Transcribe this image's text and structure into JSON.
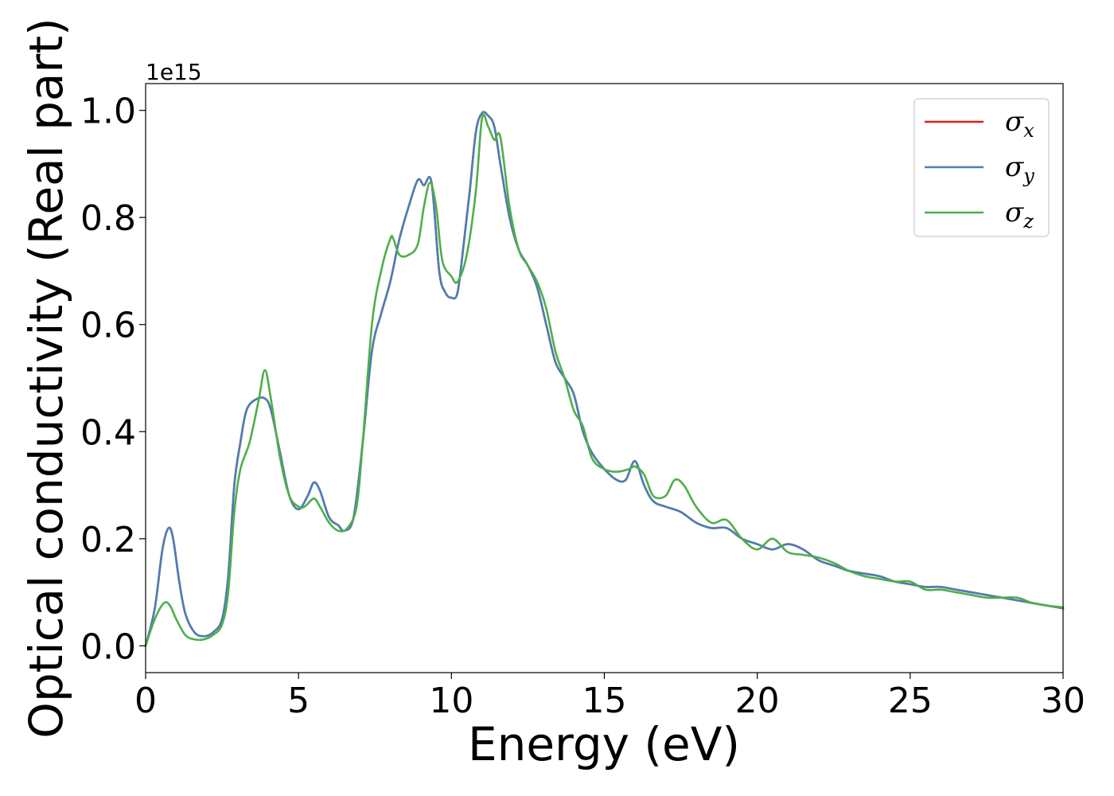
{
  "chart_data": {
    "type": "line",
    "xlabel": "Energy (eV)",
    "ylabel": "Optical conductivity (Real part)",
    "y_offset_text": "1e15",
    "xlim": [
      0,
      30
    ],
    "ylim": [
      -0.05,
      1.05
    ],
    "xticks": [
      0,
      5,
      10,
      15,
      20,
      25,
      30
    ],
    "xtick_labels": [
      "0",
      "5",
      "10",
      "15",
      "20",
      "25",
      "30"
    ],
    "yticks": [
      0.0,
      0.2,
      0.4,
      0.6,
      0.8,
      1.0
    ],
    "ytick_labels": [
      "0.0",
      "0.2",
      "0.4",
      "0.6",
      "0.8",
      "1.0"
    ],
    "grid": false,
    "legend_position": "top-right",
    "series": [
      {
        "name": "σx",
        "symbol": "σ",
        "subscript": "x",
        "color": "#e41a1c",
        "x": [
          0,
          0.3,
          0.55,
          0.75,
          0.9,
          1.1,
          1.3,
          1.6,
          1.9,
          2.2,
          2.5,
          2.7,
          2.9,
          3.1,
          3.3,
          3.6,
          3.9,
          4.1,
          4.4,
          4.7,
          5.0,
          5.3,
          5.5,
          5.7,
          6.0,
          6.3,
          6.5,
          6.8,
          7.1,
          7.4,
          7.7,
          8.0,
          8.3,
          8.6,
          8.9,
          9.1,
          9.35,
          9.6,
          9.8,
          10.0,
          10.2,
          10.4,
          10.6,
          10.8,
          11.0,
          11.2,
          11.4,
          11.6,
          11.9,
          12.2,
          12.5,
          12.8,
          13.1,
          13.4,
          13.7,
          14.0,
          14.3,
          14.6,
          15.0,
          15.4,
          15.7,
          16.0,
          16.3,
          16.6,
          17.0,
          17.5,
          18.0,
          18.5,
          19.0,
          19.5,
          20.0,
          20.5,
          21.0,
          21.5,
          22.0,
          22.5,
          23.0,
          23.5,
          24.0,
          24.5,
          25.0,
          25.5,
          26.0,
          26.5,
          27.0,
          27.5,
          28.0,
          28.5,
          29.0,
          29.5,
          30.0
        ],
        "y": [
          0.0,
          0.07,
          0.18,
          0.22,
          0.2,
          0.12,
          0.06,
          0.025,
          0.018,
          0.025,
          0.05,
          0.13,
          0.3,
          0.38,
          0.44,
          0.46,
          0.462,
          0.44,
          0.36,
          0.28,
          0.255,
          0.28,
          0.305,
          0.29,
          0.24,
          0.225,
          0.215,
          0.24,
          0.38,
          0.55,
          0.62,
          0.68,
          0.76,
          0.82,
          0.87,
          0.86,
          0.865,
          0.7,
          0.66,
          0.65,
          0.66,
          0.75,
          0.85,
          0.96,
          0.995,
          0.99,
          0.97,
          0.9,
          0.8,
          0.74,
          0.71,
          0.67,
          0.6,
          0.53,
          0.5,
          0.47,
          0.4,
          0.36,
          0.33,
          0.31,
          0.31,
          0.345,
          0.3,
          0.27,
          0.26,
          0.25,
          0.23,
          0.22,
          0.22,
          0.2,
          0.19,
          0.18,
          0.19,
          0.18,
          0.16,
          0.15,
          0.14,
          0.135,
          0.13,
          0.12,
          0.115,
          0.11,
          0.11,
          0.105,
          0.1,
          0.095,
          0.09,
          0.085,
          0.08,
          0.075,
          0.07
        ]
      },
      {
        "name": "σy",
        "symbol": "σ",
        "subscript": "y",
        "color": "#4a7fb5",
        "x": [
          0,
          0.3,
          0.55,
          0.75,
          0.9,
          1.1,
          1.3,
          1.6,
          1.9,
          2.2,
          2.5,
          2.7,
          2.9,
          3.1,
          3.3,
          3.6,
          3.9,
          4.1,
          4.4,
          4.7,
          5.0,
          5.3,
          5.5,
          5.7,
          6.0,
          6.3,
          6.5,
          6.8,
          7.1,
          7.4,
          7.7,
          8.0,
          8.3,
          8.6,
          8.9,
          9.1,
          9.35,
          9.6,
          9.8,
          10.0,
          10.2,
          10.4,
          10.6,
          10.8,
          11.0,
          11.2,
          11.4,
          11.6,
          11.9,
          12.2,
          12.5,
          12.8,
          13.1,
          13.4,
          13.7,
          14.0,
          14.3,
          14.6,
          15.0,
          15.4,
          15.7,
          16.0,
          16.3,
          16.6,
          17.0,
          17.5,
          18.0,
          18.5,
          19.0,
          19.5,
          20.0,
          20.5,
          21.0,
          21.5,
          22.0,
          22.5,
          23.0,
          23.5,
          24.0,
          24.5,
          25.0,
          25.5,
          26.0,
          26.5,
          27.0,
          27.5,
          28.0,
          28.5,
          29.0,
          29.5,
          30.0
        ],
        "y": [
          0.0,
          0.07,
          0.18,
          0.22,
          0.2,
          0.12,
          0.06,
          0.025,
          0.018,
          0.025,
          0.05,
          0.13,
          0.3,
          0.38,
          0.44,
          0.46,
          0.462,
          0.44,
          0.36,
          0.28,
          0.255,
          0.28,
          0.305,
          0.29,
          0.24,
          0.225,
          0.215,
          0.24,
          0.38,
          0.55,
          0.62,
          0.68,
          0.76,
          0.82,
          0.87,
          0.86,
          0.865,
          0.7,
          0.66,
          0.65,
          0.66,
          0.75,
          0.85,
          0.96,
          0.995,
          0.99,
          0.97,
          0.9,
          0.8,
          0.74,
          0.71,
          0.67,
          0.6,
          0.53,
          0.5,
          0.47,
          0.4,
          0.36,
          0.33,
          0.31,
          0.31,
          0.345,
          0.3,
          0.27,
          0.26,
          0.25,
          0.23,
          0.22,
          0.22,
          0.2,
          0.19,
          0.18,
          0.19,
          0.18,
          0.16,
          0.15,
          0.14,
          0.135,
          0.13,
          0.12,
          0.115,
          0.11,
          0.11,
          0.105,
          0.1,
          0.095,
          0.09,
          0.085,
          0.08,
          0.075,
          0.07
        ]
      },
      {
        "name": "σz",
        "symbol": "σ",
        "subscript": "z",
        "color": "#4daf4a",
        "x": [
          0,
          0.3,
          0.6,
          0.8,
          1.0,
          1.3,
          1.6,
          1.9,
          2.2,
          2.5,
          2.7,
          2.9,
          3.1,
          3.4,
          3.7,
          3.9,
          4.1,
          4.4,
          4.7,
          5.0,
          5.2,
          5.5,
          5.7,
          6.0,
          6.3,
          6.6,
          6.9,
          7.1,
          7.4,
          7.7,
          8.0,
          8.1,
          8.3,
          8.6,
          8.9,
          9.1,
          9.3,
          9.5,
          9.7,
          10.0,
          10.2,
          10.5,
          10.8,
          11.0,
          11.2,
          11.4,
          11.6,
          11.9,
          12.2,
          12.5,
          12.8,
          13.1,
          13.4,
          13.7,
          14.0,
          14.3,
          14.6,
          15.0,
          15.4,
          15.8,
          16.0,
          16.3,
          16.6,
          17.0,
          17.3,
          17.6,
          18.0,
          18.5,
          19.0,
          19.5,
          20.0,
          20.5,
          21.0,
          21.5,
          22.0,
          22.5,
          23.0,
          23.5,
          24.0,
          24.5,
          25.0,
          25.5,
          26.0,
          26.5,
          27.0,
          27.5,
          28.0,
          28.5,
          29.0,
          29.5,
          30.0
        ],
        "y": [
          0.0,
          0.05,
          0.08,
          0.075,
          0.05,
          0.02,
          0.012,
          0.012,
          0.02,
          0.04,
          0.1,
          0.25,
          0.33,
          0.38,
          0.46,
          0.515,
          0.46,
          0.35,
          0.28,
          0.26,
          0.26,
          0.275,
          0.26,
          0.23,
          0.215,
          0.22,
          0.26,
          0.38,
          0.6,
          0.7,
          0.76,
          0.76,
          0.73,
          0.73,
          0.75,
          0.82,
          0.865,
          0.82,
          0.72,
          0.69,
          0.68,
          0.73,
          0.85,
          0.985,
          0.97,
          0.945,
          0.95,
          0.82,
          0.74,
          0.71,
          0.68,
          0.63,
          0.55,
          0.5,
          0.44,
          0.41,
          0.35,
          0.33,
          0.325,
          0.33,
          0.335,
          0.32,
          0.28,
          0.28,
          0.31,
          0.3,
          0.26,
          0.23,
          0.235,
          0.2,
          0.18,
          0.2,
          0.175,
          0.17,
          0.165,
          0.155,
          0.14,
          0.13,
          0.125,
          0.12,
          0.12,
          0.105,
          0.105,
          0.1,
          0.095,
          0.09,
          0.09,
          0.09,
          0.08,
          0.075,
          0.072
        ]
      }
    ]
  }
}
